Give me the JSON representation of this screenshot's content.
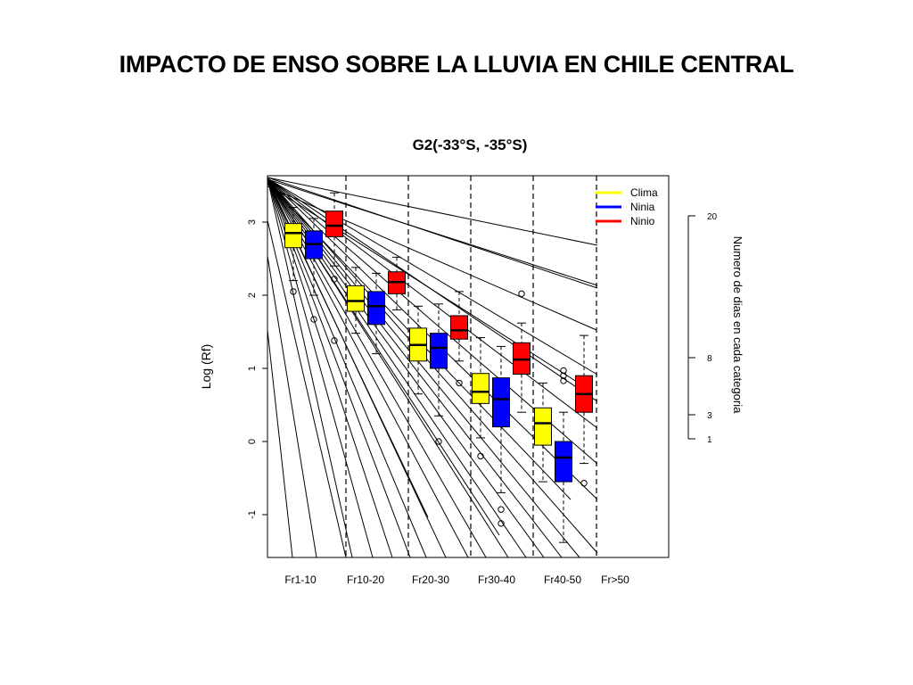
{
  "slide": {
    "title": "IMPACTO DE ENSO SOBRE LA LLUVIA EN CHILE CENTRAL"
  },
  "chart_data": {
    "type": "box",
    "title": "G2(-33°S, -35°S)",
    "xlabel": "",
    "ylabel": "Log (Rf)",
    "ylim": [
      -1.55,
      3.55
    ],
    "yticks": [
      -1,
      0,
      1,
      2,
      3
    ],
    "categories": [
      "Fr1-10",
      "Fr10-20",
      "Fr20-30",
      "Fr30-40",
      "Fr40-50",
      "Fr>50"
    ],
    "legend": {
      "position": "top-right",
      "entries": [
        {
          "label": "Clima",
          "color": "#ffff00"
        },
        {
          "label": "Ninia",
          "color": "#0000ff"
        },
        {
          "label": "Ninio",
          "color": "#ff0000"
        }
      ]
    },
    "colors": {
      "Clima": "#ffff00",
      "Ninia": "#0000ff",
      "Ninio": "#ff0000"
    },
    "boxes": [
      {
        "category": "Fr1-10",
        "series": "Clima",
        "q1": 2.65,
        "median": 2.85,
        "q3": 2.98,
        "whisker_low": 2.2,
        "whisker_high": 3.2,
        "outliers": [
          2.05
        ]
      },
      {
        "category": "Fr1-10",
        "series": "Ninia",
        "q1": 2.5,
        "median": 2.7,
        "q3": 2.88,
        "whisker_low": 2.0,
        "whisker_high": 3.05,
        "outliers": [
          1.67
        ]
      },
      {
        "category": "Fr1-10",
        "series": "Ninio",
        "q1": 2.8,
        "median": 2.95,
        "q3": 3.15,
        "whisker_low": 2.4,
        "whisker_high": 3.4,
        "outliers": [
          2.22,
          1.38
        ]
      },
      {
        "category": "Fr10-20",
        "series": "Clima",
        "q1": 1.78,
        "median": 1.92,
        "q3": 2.13,
        "whisker_low": 1.48,
        "whisker_high": 2.38,
        "outliers": []
      },
      {
        "category": "Fr10-20",
        "series": "Ninia",
        "q1": 1.6,
        "median": 1.85,
        "q3": 2.05,
        "whisker_low": 1.2,
        "whisker_high": 2.3,
        "outliers": []
      },
      {
        "category": "Fr10-20",
        "series": "Ninio",
        "q1": 2.02,
        "median": 2.18,
        "q3": 2.32,
        "whisker_low": 1.8,
        "whisker_high": 2.52,
        "outliers": []
      },
      {
        "category": "Fr20-30",
        "series": "Clima",
        "q1": 1.1,
        "median": 1.32,
        "q3": 1.55,
        "whisker_low": 0.65,
        "whisker_high": 1.85,
        "outliers": []
      },
      {
        "category": "Fr20-30",
        "series": "Ninia",
        "q1": 1.0,
        "median": 1.28,
        "q3": 1.48,
        "whisker_low": 0.35,
        "whisker_high": 1.88,
        "outliers": [
          0.0
        ]
      },
      {
        "category": "Fr20-30",
        "series": "Ninio",
        "q1": 1.4,
        "median": 1.52,
        "q3": 1.72,
        "whisker_low": 1.1,
        "whisker_high": 2.05,
        "outliers": [
          0.8
        ]
      },
      {
        "category": "Fr30-40",
        "series": "Clima",
        "q1": 0.52,
        "median": 0.68,
        "q3": 0.93,
        "whisker_low": 0.05,
        "whisker_high": 1.42,
        "outliers": [
          -0.2
        ]
      },
      {
        "category": "Fr30-40",
        "series": "Ninia",
        "q1": 0.2,
        "median": 0.58,
        "q3": 0.87,
        "whisker_low": -0.7,
        "whisker_high": 1.3,
        "outliers": [
          -0.93,
          -1.12
        ]
      },
      {
        "category": "Fr30-40",
        "series": "Ninio",
        "q1": 0.92,
        "median": 1.12,
        "q3": 1.35,
        "whisker_low": 0.4,
        "whisker_high": 1.62,
        "outliers": [
          2.02
        ]
      },
      {
        "category": "Fr40-50",
        "series": "Clima",
        "q1": -0.05,
        "median": 0.25,
        "q3": 0.46,
        "whisker_low": -0.55,
        "whisker_high": 0.8,
        "outliers": []
      },
      {
        "category": "Fr40-50",
        "series": "Ninia",
        "q1": -0.55,
        "median": -0.22,
        "q3": 0.0,
        "whisker_low": -1.38,
        "whisker_high": 0.4,
        "outliers": [
          0.97,
          0.9,
          0.83
        ]
      },
      {
        "category": "Fr40-50",
        "series": "Ninio",
        "q1": 0.4,
        "median": 0.65,
        "q3": 0.9,
        "whisker_low": -0.3,
        "whisker_high": 1.45,
        "outliers": [
          -0.57
        ]
      }
    ],
    "right_axis": {
      "label": "Numero de dias en cada categoria",
      "ticks": [
        20,
        8,
        3,
        1
      ]
    }
  }
}
